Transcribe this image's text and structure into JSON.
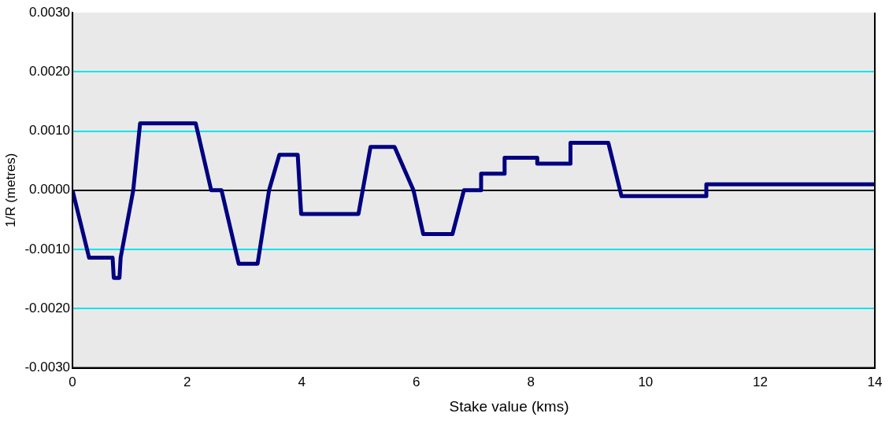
{
  "chart_data": {
    "type": "line",
    "xlabel": "Stake value (kms)",
    "ylabel": "1/R (metres)",
    "xlim": [
      0,
      14
    ],
    "xticks": [
      0,
      2,
      4,
      6,
      8,
      10,
      12,
      14
    ],
    "ylim": [
      -0.003,
      0.003
    ],
    "yticks": [
      {
        "value": -0.003,
        "label": "-0.0030"
      },
      {
        "value": -0.002,
        "label": "-0.0020"
      },
      {
        "value": -0.001,
        "label": "-0.0010"
      },
      {
        "value": 0,
        "label": "0.0000"
      },
      {
        "value": 0.001,
        "label": "0.0010"
      },
      {
        "value": 0.002,
        "label": "0.0020"
      },
      {
        "value": 0.003,
        "label": "0.0030"
      }
    ],
    "grid": "y",
    "marker": "none",
    "line_style": "solid",
    "series": [
      {
        "color": "#000080",
        "x": [
          0,
          0.29,
          0.7,
          0.72,
          0.82,
          0.84,
          1.06,
          1.18,
          2.15,
          2.42,
          2.6,
          2.9,
          3.23,
          3.43,
          3.61,
          3.93,
          3.99,
          4.99,
          5.2,
          5.62,
          5.95,
          6.12,
          6.63,
          6.83,
          7.13,
          7.13,
          7.54,
          7.54,
          8.11,
          8.11,
          8.69,
          8.69,
          9.35,
          9.58,
          11.06,
          11.06,
          14
        ],
        "values": [
          0,
          -0.00114,
          -0.00114,
          -0.00148,
          -0.00148,
          -0.00114,
          0,
          0.00113,
          0.00113,
          0,
          0,
          -0.00124,
          -0.00124,
          0,
          0.0006,
          0.0006,
          -0.0004,
          -0.0004,
          0.00073,
          0.00073,
          0,
          -0.00074,
          -0.00074,
          0,
          0,
          0.00028,
          0.00028,
          0.00055,
          0.00055,
          0.00045,
          0.00045,
          0.0008,
          0.0008,
          -0.0001,
          -0.0001,
          0.0001,
          0.0001
        ]
      }
    ]
  }
}
